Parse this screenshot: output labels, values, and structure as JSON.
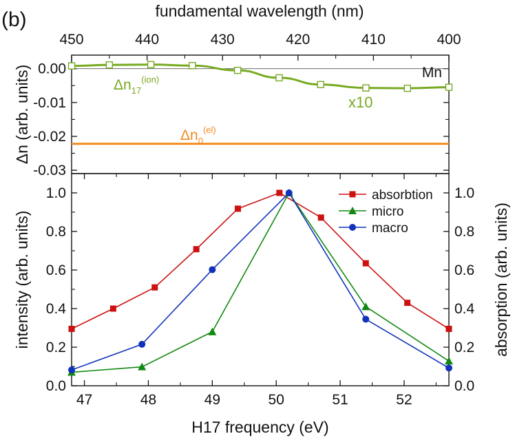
{
  "panel_label": "(b)",
  "colors": {
    "absorption": "#cc1111",
    "micro": "#118811",
    "macro": "#1133bb",
    "dn_ion": "#77aa22",
    "dn_el": "#f08a1e",
    "axis": "#111111",
    "refline": "#555555"
  },
  "chart_data": [
    {
      "id": "top",
      "type": "line",
      "top_axis_label": "fundamental wavelength (nm)",
      "top_ticks": [
        "450",
        "440",
        "430",
        "420",
        "410",
        "400"
      ],
      "ylabel": "Δn (arb. units)",
      "yticks": [
        "0.00",
        "-0.01",
        "-0.02",
        "-0.03"
      ],
      "ylim": [
        -0.031,
        0.004
      ],
      "xlim": [
        450,
        400
      ],
      "reference_label": "Mn",
      "scale_note": "x10",
      "series": [
        {
          "name": "Δn17(ion)",
          "label_main": "Δn",
          "label_sub": "17",
          "label_sup": "(ion)",
          "wavelength_nm": [
            450,
            445,
            439.5,
            434,
            428,
            422.5,
            417,
            411,
            405.5,
            400
          ],
          "values": [
            0.0008,
            0.0011,
            0.0012,
            0.0009,
            -0.0005,
            -0.0027,
            -0.0047,
            -0.0057,
            -0.0058,
            -0.0055
          ]
        },
        {
          "name": "Δn0(el)",
          "label_main": "Δn",
          "label_sub": "0",
          "label_sup": "(el)",
          "value": -0.0222
        }
      ]
    },
    {
      "id": "bottom",
      "type": "line",
      "xlabel": "H17 frequency (eV)",
      "ylabel": "intensity (arb. units)",
      "ylabel_right": "absorption (arb. units)",
      "xticks": [
        "47",
        "48",
        "49",
        "50",
        "51",
        "52"
      ],
      "yticks": [
        "0.0",
        "0.2",
        "0.4",
        "0.6",
        "0.8",
        "1.0"
      ],
      "yticks_right": [
        "0.0",
        "0.2",
        "0.4",
        "0.6",
        "0.8",
        "1.0"
      ],
      "xlim": [
        46.8,
        52.7
      ],
      "ylim": [
        0,
        1.1
      ],
      "legend_position": "top-right",
      "series": [
        {
          "name": "absorbtion",
          "marker": "square",
          "x": [
            46.8,
            47.45,
            48.1,
            48.75,
            49.4,
            50.05,
            50.7,
            51.4,
            52.05,
            52.7
          ],
          "values": [
            0.295,
            0.4,
            0.51,
            0.708,
            0.918,
            1.0,
            0.872,
            0.635,
            0.43,
            0.295
          ]
        },
        {
          "name": "micro",
          "marker": "triangle",
          "x": [
            46.8,
            47.9,
            49.0,
            50.2,
            51.4,
            52.7
          ],
          "values": [
            0.07,
            0.098,
            0.28,
            1.0,
            0.41,
            0.128
          ]
        },
        {
          "name": "macro",
          "marker": "circle",
          "x": [
            46.8,
            47.9,
            49.0,
            50.2,
            51.4,
            52.7
          ],
          "values": [
            0.082,
            0.215,
            0.602,
            1.0,
            0.345,
            0.092
          ]
        }
      ]
    }
  ]
}
